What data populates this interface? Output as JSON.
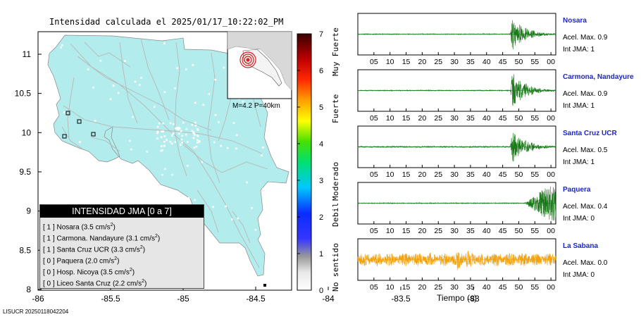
{
  "map": {
    "title": "Intensidad calculada el 2025/01/17_10:22:02_PM",
    "x_ticks": [
      "-86",
      "-85.5",
      "-85",
      "-84.5",
      "-84",
      "-83.5",
      "-83"
    ],
    "y_ticks": [
      "11",
      "10.5",
      "10",
      "9.5",
      "9",
      "8.5",
      "8"
    ],
    "inset_caption": "M=4.2 P=40km",
    "footer": "LISUCR 20250118042204",
    "colors": {
      "land": "#b3ecec",
      "roads": "#b7b7b7",
      "epicenter": "#d42020"
    }
  },
  "legend": {
    "title": "INTENSIDAD JMA [0 a 7]",
    "rows": [
      {
        "int": "[ 1 ]",
        "text": "Nosara (3.5 cm/s",
        "sup": "2",
        "close": ")"
      },
      {
        "int": "[ 1 ]",
        "text": "Carmona. Nandayure (3.1 cm/s",
        "sup": "2",
        "close": ")"
      },
      {
        "int": "[ 1 ]",
        "text": "Santa Cruz UCR (3.3 cm/s",
        "sup": "2",
        "close": ")"
      },
      {
        "int": "[ 0 ]",
        "text": "Paquera (2.0 cm/s",
        "sup": "2",
        "close": ")"
      },
      {
        "int": "[ 0 ]",
        "text": "Hosp. Nicoya (3.5 cm/s",
        "sup": "2",
        "close": ")"
      },
      {
        "int": "[ 0 ]",
        "text": "Liceo Santa Cruz (2.2 cm/s",
        "sup": "2",
        "close": ")"
      }
    ]
  },
  "colorbar": {
    "ticks": [
      "7",
      "6",
      "5",
      "4",
      "3",
      "2",
      "1",
      "0"
    ],
    "categories": [
      "Muy Fuerte",
      "Fuerte",
      "Moderado",
      "Debil",
      "No sentido"
    ]
  },
  "seismograms": {
    "x_ticks": [
      "05",
      "10",
      "15",
      "20",
      "25",
      "30",
      "35",
      "40",
      "45",
      "50",
      "55",
      "00"
    ],
    "xlabel": "Tiempo (s)",
    "stations": [
      {
        "name": "Nosara",
        "acc": "Acel. Max. 0.9",
        "int": "Int JMA: 1",
        "color": "#1a7a1a",
        "onset": 0.77,
        "amp": 0.85,
        "noise": 0.02
      },
      {
        "name": "Carmona, Nandayure",
        "acc": "Acel. Max. 0.9",
        "int": "Int JMA: 1",
        "color": "#1a7a1a",
        "onset": 0.77,
        "amp": 0.95,
        "noise": 0.02
      },
      {
        "name": "Santa Cruz UCR",
        "acc": "Acel. Max. 0.5",
        "int": "Int JMA: 1",
        "color": "#1a7a1a",
        "onset": 0.77,
        "amp": 0.9,
        "noise": 0.03
      },
      {
        "name": "Paquera",
        "acc": "Acel. Max. 0.4",
        "int": "Int JMA: 0",
        "color": "#1a7a1a",
        "onset": 0.84,
        "amp": 0.9,
        "noise": 0.02
      },
      {
        "name": "La Sabana",
        "acc": "Acel. Max. 0.0",
        "int": "Int JMA: 0",
        "color": "#f2a20c",
        "onset": 0.0,
        "amp": 0.35,
        "noise": 0.3
      }
    ]
  }
}
